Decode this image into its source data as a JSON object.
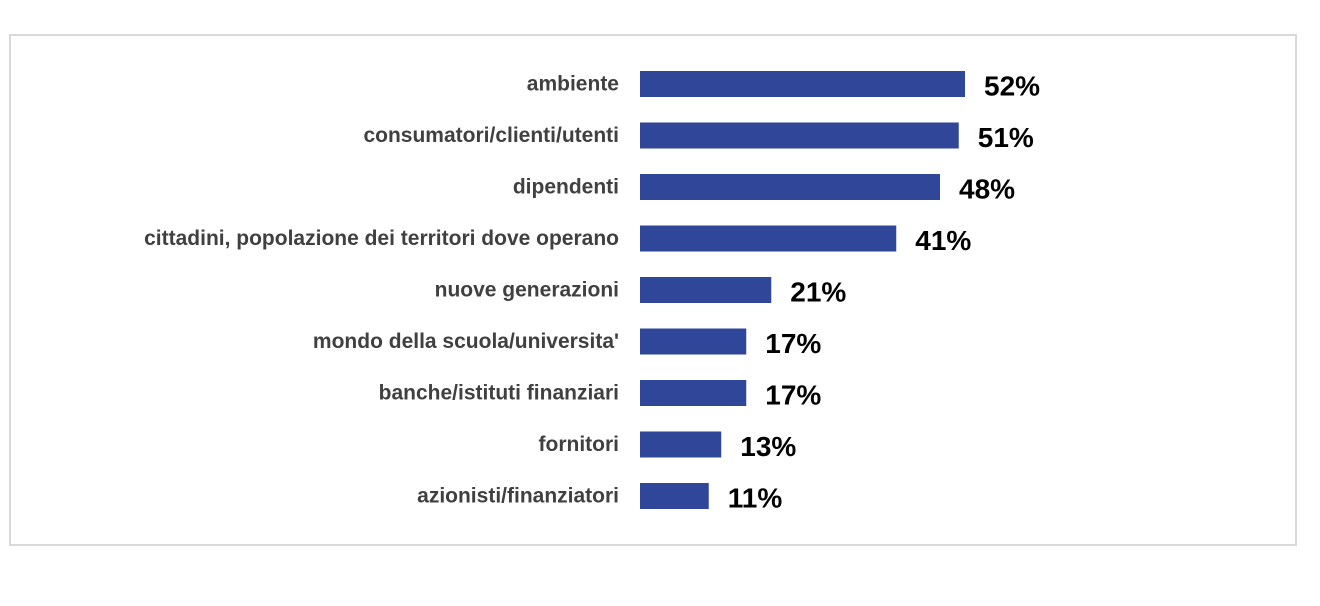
{
  "chart_data": {
    "type": "bar",
    "orientation": "horizontal",
    "categories": [
      "ambiente",
      "consumatori/clienti/utenti",
      "dipendenti",
      "cittadini, popolazione dei territori dove operano",
      "nuove generazioni",
      "mondo della scuola/universita'",
      "banche/istituti finanziari",
      "fornitori",
      "azionisti/finanziatori"
    ],
    "values": [
      52,
      51,
      48,
      41,
      21,
      17,
      17,
      13,
      11
    ],
    "value_labels": [
      "52%",
      "51%",
      "48%",
      "41%",
      "21%",
      "17%",
      "17%",
      "13%",
      "11%"
    ],
    "unit": "%",
    "bar_color": "#2F4699",
    "title": "",
    "xlabel": "",
    "ylabel": "",
    "xlim": [
      0,
      100
    ],
    "grid": false,
    "legend": "none"
  }
}
